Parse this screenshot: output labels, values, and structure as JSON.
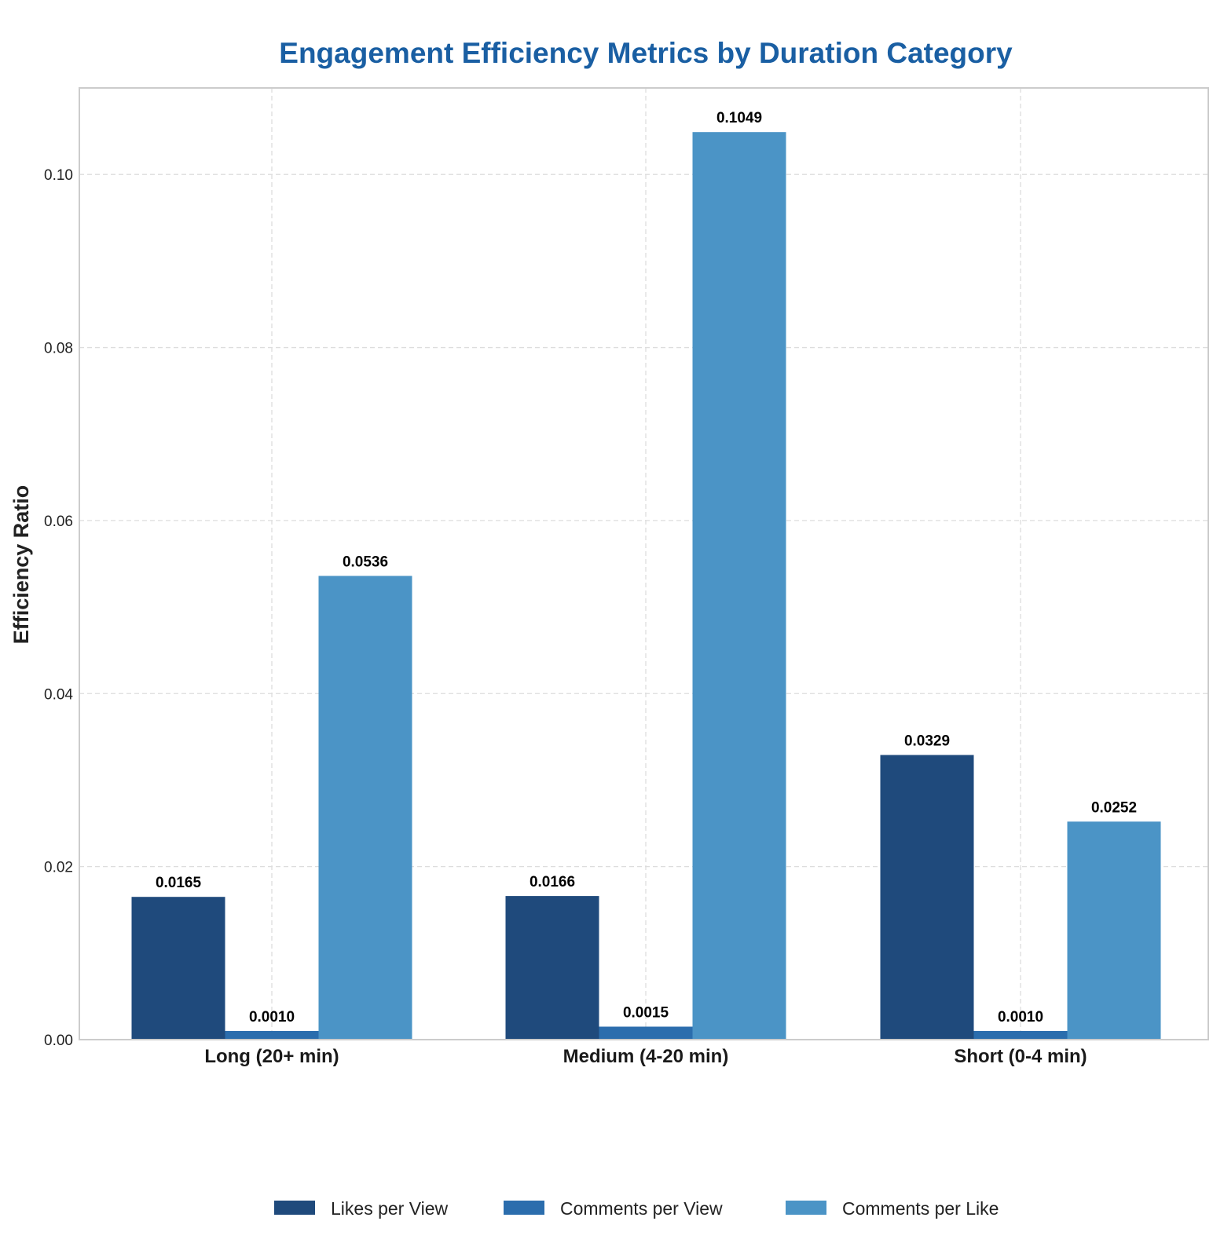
{
  "chart_data": {
    "type": "bar",
    "title": "Engagement Efficiency Metrics by Duration Category",
    "xlabel": "",
    "ylabel": "Efficiency Ratio",
    "categories": [
      "Long (20+ min)",
      "Medium (4-20 min)",
      "Short (0-4 min)"
    ],
    "series": [
      {
        "name": "Likes per View",
        "color": "#1f4a7c",
        "values": [
          0.0165,
          0.0166,
          0.0329
        ],
        "labels": [
          "0.0165",
          "0.0166",
          "0.0329"
        ]
      },
      {
        "name": "Comments per View",
        "color": "#2b6dad",
        "values": [
          0.001,
          0.0015,
          0.001
        ],
        "labels": [
          "0.0010",
          "0.0015",
          "0.0010"
        ]
      },
      {
        "name": "Comments per Like",
        "color": "#4b94c6",
        "values": [
          0.0536,
          0.1049,
          0.0252
        ],
        "labels": [
          "0.0536",
          "0.1049",
          "0.0252"
        ]
      }
    ],
    "ylim": [
      0,
      0.11
    ],
    "yticks": [
      0.0,
      0.02,
      0.04,
      0.06,
      0.08,
      0.1
    ],
    "ytick_labels": [
      "0.00",
      "0.02",
      "0.04",
      "0.06",
      "0.08",
      "0.10"
    ],
    "grid": true,
    "legend_position": "bottom-center"
  },
  "colors": {
    "title": "#1a5fa3",
    "grid": "#dddddd",
    "frame": "#cccccc"
  }
}
